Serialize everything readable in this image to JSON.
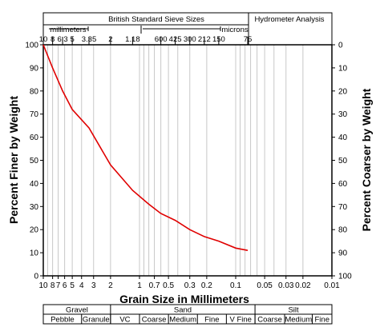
{
  "header": {
    "sieve_title": "British Standard Sieve Sizes",
    "hydro_title": "Hydrometer Analysis",
    "mm_label": "millimeters",
    "microns_label": "microns",
    "sieve_ticks": [
      {
        "d": 10,
        "label": "10"
      },
      {
        "d": 8,
        "label": "8"
      },
      {
        "d": 6.3,
        "label": "6.3"
      },
      {
        "d": 5,
        "label": "5"
      },
      {
        "d": 3.35,
        "label": "3.35"
      },
      {
        "d": 2,
        "label": "2"
      },
      {
        "d": 1.18,
        "label": "1.18"
      },
      {
        "d": 0.6,
        "label": "600"
      },
      {
        "d": 0.425,
        "label": "425"
      },
      {
        "d": 0.3,
        "label": "300"
      },
      {
        "d": 0.212,
        "label": "212"
      },
      {
        "d": 0.15,
        "label": "150"
      },
      {
        "d": 0.075,
        "label": "75"
      }
    ]
  },
  "chart_data": {
    "type": "line",
    "xlabel": "Grain Size in Millimeters",
    "ylabel": "Percent Finer by Weight",
    "y2label": "Percent Coarser by Weight",
    "x_scale": "log",
    "x_reversed": true,
    "xlim": [
      10,
      0.01
    ],
    "ylim": [
      0,
      100
    ],
    "x_ticks": [
      {
        "v": 10,
        "label": "10"
      },
      {
        "v": 8,
        "label": "8"
      },
      {
        "v": 7,
        "label": "7"
      },
      {
        "v": 6,
        "label": "6"
      },
      {
        "v": 5,
        "label": "5"
      },
      {
        "v": 4,
        "label": "4"
      },
      {
        "v": 3,
        "label": "3"
      },
      {
        "v": 2,
        "label": "2"
      },
      {
        "v": 1,
        "label": "1"
      },
      {
        "v": 0.7,
        "label": "0.7"
      },
      {
        "v": 0.5,
        "label": "0.5"
      },
      {
        "v": 0.3,
        "label": "0.3"
      },
      {
        "v": 0.2,
        "label": "0.2"
      },
      {
        "v": 0.1,
        "label": "0.1"
      },
      {
        "v": 0.05,
        "label": "0.05"
      },
      {
        "v": 0.03,
        "label": "0.03"
      },
      {
        "v": 0.02,
        "label": "0.02"
      },
      {
        "v": 0.01,
        "label": "0.01"
      }
    ],
    "y_ticks": [
      0,
      10,
      20,
      30,
      40,
      50,
      60,
      70,
      80,
      90,
      100
    ],
    "y2_ticks": [
      100,
      90,
      80,
      70,
      60,
      50,
      40,
      30,
      20,
      10,
      0
    ],
    "grid_lines_x": [
      9,
      8,
      7,
      6,
      5,
      4,
      3,
      2,
      1,
      0.9,
      0.8,
      0.7,
      0.6,
      0.5,
      0.4,
      0.3,
      0.2,
      0.1,
      0.09,
      0.08,
      0.07,
      0.06,
      0.05,
      0.04,
      0.03,
      0.02
    ],
    "series": [
      {
        "color": "#e00000",
        "points": [
          {
            "x": 10,
            "y": 100
          },
          {
            "x": 8,
            "y": 90
          },
          {
            "x": 6.3,
            "y": 80
          },
          {
            "x": 5,
            "y": 72
          },
          {
            "x": 3.35,
            "y": 64
          },
          {
            "x": 2,
            "y": 48
          },
          {
            "x": 1.18,
            "y": 37
          },
          {
            "x": 0.8,
            "y": 31
          },
          {
            "x": 0.6,
            "y": 27
          },
          {
            "x": 0.425,
            "y": 24
          },
          {
            "x": 0.3,
            "y": 20
          },
          {
            "x": 0.212,
            "y": 17
          },
          {
            "x": 0.15,
            "y": 15
          },
          {
            "x": 0.1,
            "y": 12
          },
          {
            "x": 0.075,
            "y": 11
          }
        ]
      }
    ]
  },
  "classification": {
    "groups": [
      {
        "label": "Gravel",
        "from": 10,
        "to": 2
      },
      {
        "label": "Sand",
        "from": 2,
        "to": 0.063
      },
      {
        "label": "Silt",
        "from": 0.063,
        "to": 0.01
      }
    ],
    "subgroups": [
      {
        "label": "Pebble",
        "from": 10,
        "to": 4
      },
      {
        "label": "Granule",
        "from": 4,
        "to": 2
      },
      {
        "label": "VC",
        "from": 2,
        "to": 1
      },
      {
        "label": "Coarse",
        "from": 1,
        "to": 0.5
      },
      {
        "label": "Medium",
        "from": 0.5,
        "to": 0.25
      },
      {
        "label": "Fine",
        "from": 0.25,
        "to": 0.125
      },
      {
        "label": "V Fine",
        "from": 0.125,
        "to": 0.063
      },
      {
        "label": "Coarse",
        "from": 0.063,
        "to": 0.031
      },
      {
        "label": "Medium",
        "from": 0.031,
        "to": 0.016
      },
      {
        "label": "Fine",
        "from": 0.016,
        "to": 0.01
      }
    ]
  }
}
